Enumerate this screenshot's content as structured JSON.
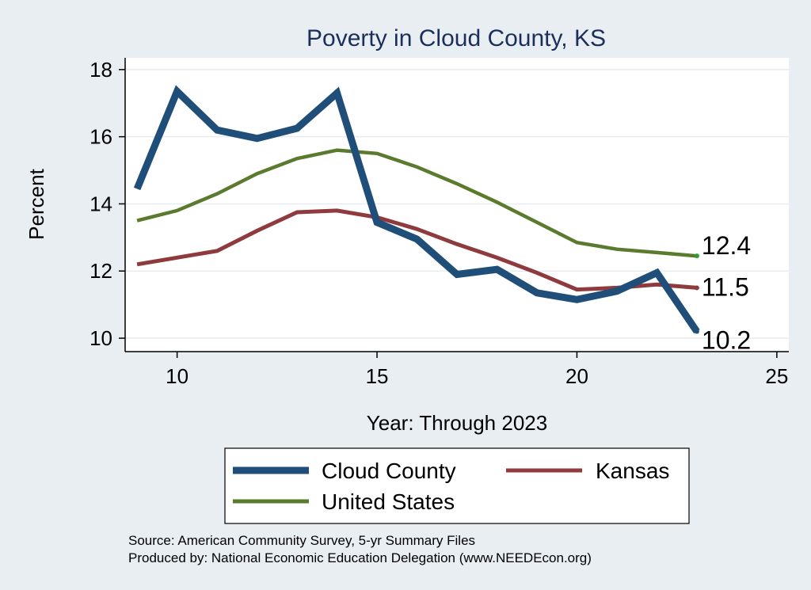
{
  "chart_data": {
    "type": "line",
    "title": "Poverty in Cloud County, KS",
    "xlabel": "Year: Through 2023",
    "ylabel": "Percent",
    "xlim": [
      8.7,
      25.3
    ],
    "ylim": [
      9.6,
      18.35
    ],
    "xticks": [
      10,
      15,
      20,
      25
    ],
    "yticks": [
      10,
      12,
      14,
      16,
      18
    ],
    "grid": true,
    "x": [
      9,
      10,
      11,
      12,
      13,
      14,
      15,
      16,
      17,
      18,
      19,
      20,
      21,
      22,
      23
    ],
    "series": [
      {
        "name": "Cloud County",
        "color": "#1f4e79",
        "values": [
          14.45,
          17.35,
          16.2,
          15.95,
          16.25,
          17.3,
          13.45,
          12.95,
          11.9,
          12.05,
          11.35,
          11.15,
          11.4,
          11.95,
          10.2
        ],
        "end_label": "10.2"
      },
      {
        "name": "Kansas",
        "color": "#8f3a3d",
        "values": [
          12.2,
          12.4,
          12.6,
          13.2,
          13.75,
          13.8,
          13.6,
          13.25,
          12.8,
          12.4,
          11.95,
          11.45,
          11.5,
          11.6,
          11.5
        ],
        "end_label": "11.5"
      },
      {
        "name": "United States",
        "color": "#5a7a2e",
        "values": [
          13.5,
          13.8,
          14.3,
          14.9,
          15.35,
          15.6,
          15.5,
          15.1,
          14.6,
          14.05,
          13.45,
          12.85,
          12.65,
          12.55,
          12.45
        ],
        "end_label": "12.4"
      }
    ],
    "legend": {
      "placement": "bottom",
      "entries": [
        "Cloud County",
        "Kansas",
        "United States"
      ]
    },
    "source_lines": [
      "Source: American Community Survey, 5-yr Summary Files",
      "Produced by: National Economic Education Delegation (www.NEEDEcon.org)"
    ]
  }
}
